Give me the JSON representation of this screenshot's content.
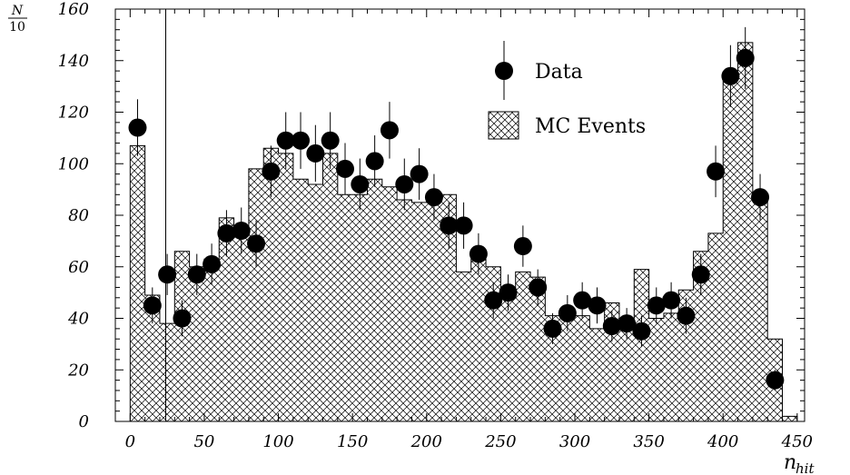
{
  "chart_data": {
    "type": "bar",
    "title": "",
    "xlabel": {
      "base": "n",
      "sub": "hit"
    },
    "ylabel": {
      "numerator": "N",
      "denominator": "10"
    },
    "xlim": [
      -10,
      455
    ],
    "ylim": [
      0,
      160
    ],
    "x_ticks": [
      0,
      50,
      100,
      150,
      200,
      250,
      300,
      350,
      400,
      450
    ],
    "y_ticks": [
      0,
      20,
      40,
      60,
      80,
      100,
      120,
      140,
      160
    ],
    "vertical_line_x": 24,
    "legend": {
      "placement": "top-right",
      "entries": [
        {
          "name": "Data",
          "marker": "filled-circle-with-error-bar"
        },
        {
          "name": "MC Events",
          "marker": "cross-hatched-box"
        }
      ]
    },
    "series": [
      {
        "name": "MC Events",
        "kind": "histogram",
        "bin_width": 10,
        "bin_starts": [
          0,
          10,
          20,
          30,
          40,
          50,
          60,
          70,
          80,
          90,
          100,
          110,
          120,
          130,
          140,
          150,
          160,
          170,
          180,
          190,
          200,
          210,
          220,
          230,
          240,
          250,
          260,
          270,
          280,
          290,
          300,
          310,
          320,
          330,
          340,
          350,
          360,
          370,
          380,
          390,
          400,
          410,
          420,
          430,
          440
        ],
        "values": [
          107,
          49,
          38,
          66,
          60,
          63,
          79,
          72,
          98,
          106,
          104,
          94,
          92,
          104,
          88,
          88,
          94,
          91,
          86,
          85,
          87,
          88,
          58,
          63,
          60,
          51,
          58,
          56,
          41,
          42,
          41,
          36,
          46,
          36,
          59,
          40,
          42,
          51,
          66,
          73,
          134,
          147,
          87,
          32,
          2
        ]
      },
      {
        "name": "Data",
        "kind": "points-with-error-bars",
        "x": [
          5,
          15,
          25,
          35,
          45,
          55,
          65,
          75,
          85,
          95,
          105,
          115,
          125,
          135,
          145,
          155,
          165,
          175,
          185,
          195,
          205,
          215,
          225,
          235,
          245,
          255,
          265,
          275,
          285,
          295,
          305,
          315,
          325,
          335,
          345,
          355,
          365,
          375,
          385,
          395,
          405,
          415,
          425,
          435
        ],
        "values": [
          114,
          45,
          57,
          40,
          57,
          61,
          73,
          74,
          69,
          97,
          109,
          109,
          104,
          109,
          98,
          92,
          101,
          113,
          92,
          96,
          87,
          76,
          76,
          65,
          47,
          50,
          68,
          52,
          36,
          42,
          47,
          45,
          37,
          38,
          35,
          45,
          47,
          41,
          57,
          97,
          134,
          141,
          87,
          16
        ],
        "errors": [
          11,
          7,
          8,
          7,
          8,
          8,
          9,
          9,
          9,
          10,
          11,
          11,
          11,
          11,
          10,
          10,
          10,
          11,
          10,
          10,
          9,
          9,
          9,
          8,
          7,
          7,
          8,
          7,
          6,
          7,
          7,
          7,
          6,
          6,
          6,
          7,
          7,
          7,
          8,
          10,
          12,
          12,
          9,
          4
        ]
      }
    ]
  }
}
